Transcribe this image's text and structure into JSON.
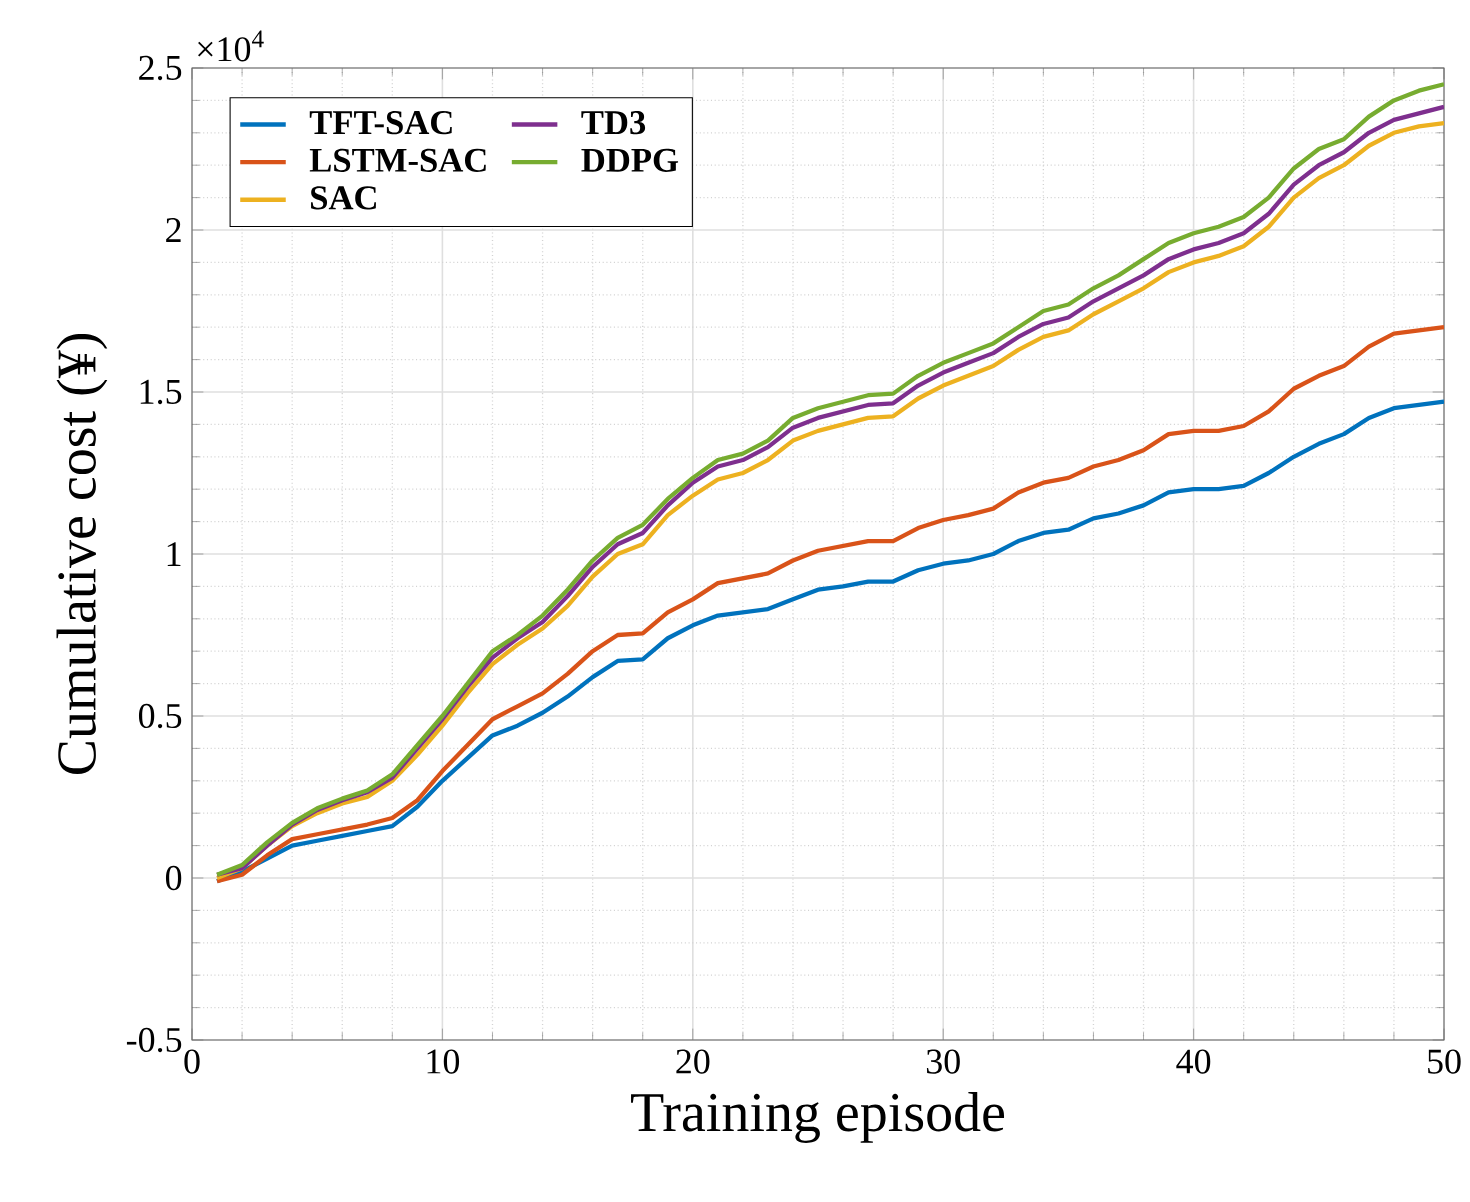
{
  "chart_data": {
    "type": "line",
    "xlabel": "Training episode",
    "ylabel": "Cumulative cost (¥)",
    "annotations": [
      "×10$^{4}$"
    ],
    "x": [
      1,
      2,
      3,
      4,
      5,
      6,
      7,
      8,
      9,
      10,
      11,
      12,
      13,
      14,
      15,
      16,
      17,
      18,
      19,
      20,
      21,
      22,
      23,
      24,
      25,
      26,
      27,
      28,
      29,
      30,
      31,
      32,
      33,
      34,
      35,
      36,
      37,
      38,
      39,
      40,
      41,
      42,
      43,
      44,
      45,
      46,
      47,
      48,
      49,
      50
    ],
    "xlim": [
      0,
      50
    ],
    "xticks": [
      0,
      10,
      20,
      30,
      40,
      50
    ],
    "ylim": [
      -0.5,
      2.5
    ],
    "yticks": [
      -0.5,
      0,
      0.5,
      1,
      1.5,
      2,
      2.5
    ],
    "grid": true,
    "legend": "top left",
    "marker": "none",
    "line_style": "solid",
    "series": [
      {
        "name": "TFT-SAC",
        "color": "#0072bd",
        "values": [
          -0.01,
          0.02,
          0.06,
          0.1,
          0.115,
          0.13,
          0.145,
          0.16,
          0.22,
          0.3,
          0.37,
          0.44,
          0.47,
          0.51,
          0.56,
          0.62,
          0.67,
          0.675,
          0.74,
          0.78,
          0.81,
          0.82,
          0.83,
          0.86,
          0.89,
          0.9,
          0.915,
          0.915,
          0.95,
          0.97,
          0.98,
          1.0,
          1.04,
          1.065,
          1.075,
          1.11,
          1.125,
          1.15,
          1.19,
          1.2,
          1.2,
          1.21,
          1.25,
          1.3,
          1.34,
          1.37,
          1.42,
          1.45,
          1.46,
          1.47
        ]
      },
      {
        "name": "LSTM-SAC",
        "color": "#d95319",
        "values": [
          -0.01,
          0.01,
          0.07,
          0.12,
          0.135,
          0.15,
          0.165,
          0.185,
          0.24,
          0.33,
          0.41,
          0.49,
          0.53,
          0.57,
          0.63,
          0.7,
          0.75,
          0.755,
          0.82,
          0.86,
          0.91,
          0.925,
          0.94,
          0.98,
          1.01,
          1.025,
          1.04,
          1.04,
          1.08,
          1.105,
          1.12,
          1.14,
          1.19,
          1.22,
          1.235,
          1.27,
          1.29,
          1.32,
          1.37,
          1.38,
          1.38,
          1.395,
          1.44,
          1.51,
          1.55,
          1.58,
          1.64,
          1.68,
          1.69,
          1.7
        ]
      },
      {
        "name": "SAC",
        "color": "#edb120",
        "values": [
          0.0,
          0.03,
          0.1,
          0.16,
          0.2,
          0.23,
          0.25,
          0.3,
          0.38,
          0.47,
          0.57,
          0.66,
          0.72,
          0.77,
          0.84,
          0.93,
          1.0,
          1.03,
          1.12,
          1.18,
          1.23,
          1.25,
          1.29,
          1.35,
          1.38,
          1.4,
          1.42,
          1.425,
          1.48,
          1.52,
          1.55,
          1.58,
          1.63,
          1.67,
          1.69,
          1.74,
          1.78,
          1.82,
          1.87,
          1.9,
          1.92,
          1.95,
          2.01,
          2.1,
          2.16,
          2.2,
          2.26,
          2.3,
          2.32,
          2.33
        ]
      },
      {
        "name": "TD3",
        "color": "#7e2f8e",
        "values": [
          0.01,
          0.03,
          0.1,
          0.165,
          0.21,
          0.24,
          0.265,
          0.31,
          0.4,
          0.49,
          0.59,
          0.68,
          0.74,
          0.79,
          0.87,
          0.96,
          1.03,
          1.065,
          1.15,
          1.22,
          1.27,
          1.29,
          1.33,
          1.39,
          1.42,
          1.44,
          1.46,
          1.465,
          1.52,
          1.56,
          1.59,
          1.62,
          1.67,
          1.71,
          1.73,
          1.78,
          1.82,
          1.86,
          1.91,
          1.94,
          1.96,
          1.99,
          2.05,
          2.14,
          2.2,
          2.24,
          2.3,
          2.34,
          2.36,
          2.38
        ]
      },
      {
        "name": "DDPG",
        "color": "#77ac30",
        "values": [
          0.01,
          0.04,
          0.11,
          0.17,
          0.215,
          0.245,
          0.27,
          0.32,
          0.41,
          0.5,
          0.6,
          0.7,
          0.75,
          0.81,
          0.89,
          0.98,
          1.05,
          1.09,
          1.17,
          1.235,
          1.29,
          1.31,
          1.35,
          1.42,
          1.45,
          1.47,
          1.49,
          1.495,
          1.55,
          1.59,
          1.62,
          1.65,
          1.7,
          1.75,
          1.77,
          1.82,
          1.86,
          1.91,
          1.96,
          1.99,
          2.01,
          2.04,
          2.1,
          2.19,
          2.25,
          2.28,
          2.35,
          2.4,
          2.43,
          2.45
        ]
      }
    ]
  }
}
